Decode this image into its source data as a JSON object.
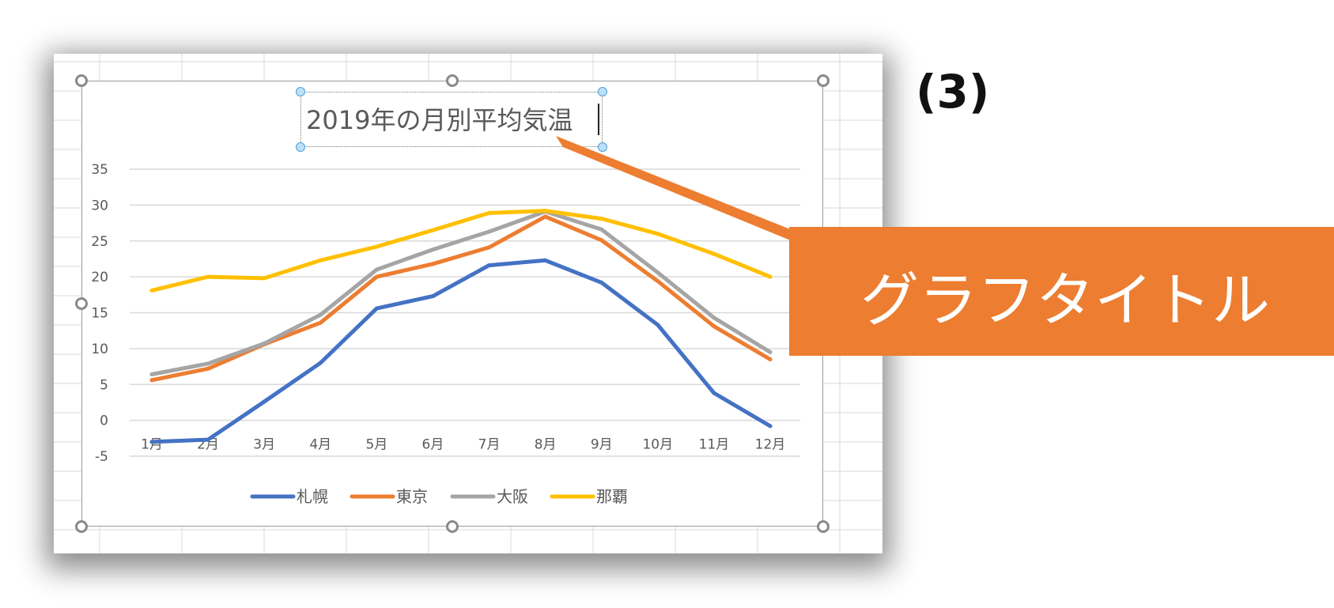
{
  "step_label": "(3)",
  "callout": {
    "text": "グラフタイトル",
    "color": "#ed7d31"
  },
  "chart_data": {
    "type": "line",
    "title": "2019年の月別平均気温",
    "xlabel": "",
    "ylabel": "",
    "categories": [
      "1月",
      "2月",
      "3月",
      "4月",
      "5月",
      "6月",
      "7月",
      "8月",
      "9月",
      "10月",
      "11月",
      "12月"
    ],
    "ylim": [
      -5,
      35
    ],
    "yticks": [
      -5,
      0,
      5,
      10,
      15,
      20,
      25,
      30,
      35
    ],
    "grid": true,
    "legend": "bottom",
    "series": [
      {
        "name": "札幌",
        "color": "#4472c4",
        "values": [
          -3.0,
          -2.7,
          2.6,
          8.0,
          15.6,
          17.3,
          21.6,
          22.3,
          19.2,
          13.3,
          3.8,
          -0.8
        ]
      },
      {
        "name": "東京",
        "color": "#ed7d31",
        "values": [
          5.6,
          7.2,
          10.6,
          13.6,
          20.0,
          21.8,
          24.1,
          28.4,
          25.1,
          19.4,
          13.1,
          8.5
        ]
      },
      {
        "name": "大阪",
        "color": "#a5a5a5",
        "values": [
          6.4,
          7.9,
          10.7,
          14.7,
          21.0,
          23.8,
          26.3,
          29.1,
          26.6,
          20.6,
          14.3,
          9.5
        ]
      },
      {
        "name": "那覇",
        "color": "#ffc000",
        "values": [
          18.1,
          20.0,
          19.8,
          22.3,
          24.2,
          26.5,
          28.9,
          29.2,
          28.1,
          26.0,
          23.2,
          20.0
        ]
      }
    ]
  }
}
